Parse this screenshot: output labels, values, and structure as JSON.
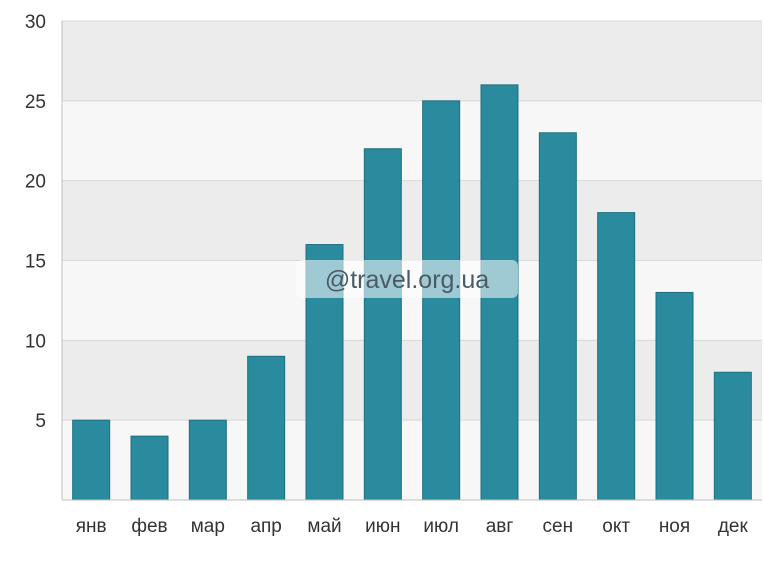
{
  "chart_data": {
    "type": "bar",
    "categories": [
      "янв",
      "фев",
      "мар",
      "апр",
      "май",
      "июн",
      "июл",
      "авг",
      "сен",
      "окт",
      "ноя",
      "дек"
    ],
    "values": [
      5,
      4,
      5,
      9,
      16,
      22,
      25,
      26,
      23,
      18,
      13,
      8
    ],
    "title": "",
    "xlabel": "",
    "ylabel": "",
    "ylim": [
      0,
      30
    ],
    "yticks": [
      5,
      10,
      15,
      20,
      25,
      30
    ],
    "grid": true,
    "legend": "none",
    "bar_color": "#2a8b9e",
    "band_colors": [
      "#ececec",
      "#f7f7f7"
    ]
  },
  "watermark": {
    "text": "@travel.org.ua"
  }
}
